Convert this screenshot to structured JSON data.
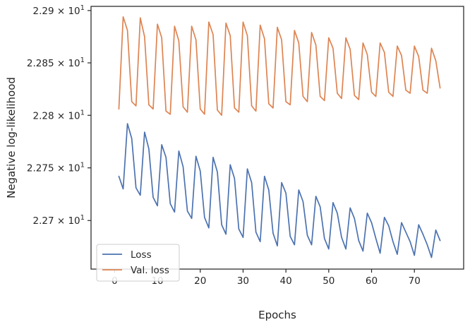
{
  "chart_data": {
    "type": "line",
    "xlabel": "Epochs",
    "ylabel": "Negative log-likelihood",
    "xlim": [
      -5.5,
      81.5
    ],
    "ylim": [
      22.654,
      22.904
    ],
    "yscale": "log",
    "grid": false,
    "legend_position": "lower-left",
    "xticks": [
      {
        "value": 0,
        "label": "0"
      },
      {
        "value": 10,
        "label": "10"
      },
      {
        "value": 20,
        "label": "20"
      },
      {
        "value": 30,
        "label": "30"
      },
      {
        "value": 40,
        "label": "40"
      },
      {
        "value": 50,
        "label": "50"
      },
      {
        "value": 60,
        "label": "60"
      },
      {
        "value": 70,
        "label": "70"
      }
    ],
    "yticks": [
      {
        "value": 22.7,
        "mantissa": "2.27",
        "base": "10",
        "exp": "1"
      },
      {
        "value": 22.75,
        "mantissa": "2.275",
        "base": "10",
        "exp": "1"
      },
      {
        "value": 22.8,
        "mantissa": "2.28",
        "base": "10",
        "exp": "1"
      },
      {
        "value": 22.85,
        "mantissa": "2.285",
        "base": "10",
        "exp": "1"
      },
      {
        "value": 22.9,
        "mantissa": "2.29",
        "base": "10",
        "exp": "1"
      }
    ],
    "x": [
      1,
      2,
      3,
      4,
      5,
      6,
      7,
      8,
      9,
      10,
      11,
      12,
      13,
      14,
      15,
      16,
      17,
      18,
      19,
      20,
      21,
      22,
      23,
      24,
      25,
      26,
      27,
      28,
      29,
      30,
      31,
      32,
      33,
      34,
      35,
      36,
      37,
      38,
      39,
      40,
      41,
      42,
      43,
      44,
      45,
      46,
      47,
      48,
      49,
      50,
      51,
      52,
      53,
      54,
      55,
      56,
      57,
      58,
      59,
      60,
      61,
      62,
      63,
      64,
      65,
      66,
      67,
      68,
      69,
      70,
      71,
      72,
      73,
      74,
      75,
      76
    ],
    "series": [
      {
        "name": "Loss",
        "color": "#4c72b0",
        "values": [
          22.742,
          22.73,
          22.792,
          22.778,
          22.731,
          22.724,
          22.784,
          22.768,
          22.722,
          22.714,
          22.772,
          22.76,
          22.716,
          22.708,
          22.766,
          22.751,
          22.709,
          22.702,
          22.761,
          22.747,
          22.703,
          22.693,
          22.76,
          22.746,
          22.696,
          22.687,
          22.753,
          22.74,
          22.692,
          22.684,
          22.749,
          22.736,
          22.689,
          22.68,
          22.742,
          22.729,
          22.688,
          22.676,
          22.736,
          22.726,
          22.685,
          22.677,
          22.729,
          22.718,
          22.686,
          22.677,
          22.723,
          22.713,
          22.683,
          22.673,
          22.717,
          22.707,
          22.684,
          22.673,
          22.712,
          22.702,
          22.681,
          22.671,
          22.707,
          22.698,
          22.683,
          22.669,
          22.703,
          22.695,
          22.68,
          22.668,
          22.698,
          22.689,
          22.68,
          22.667,
          22.696,
          22.687,
          22.677,
          22.665,
          22.691,
          22.681
        ]
      },
      {
        "name": "Val. loss",
        "color": "#dd8452",
        "values": [
          22.806,
          22.894,
          22.881,
          22.813,
          22.809,
          22.893,
          22.875,
          22.81,
          22.806,
          22.887,
          22.874,
          22.804,
          22.801,
          22.885,
          22.871,
          22.808,
          22.803,
          22.885,
          22.872,
          22.806,
          22.801,
          22.889,
          22.877,
          22.805,
          22.8,
          22.888,
          22.876,
          22.807,
          22.803,
          22.889,
          22.876,
          22.809,
          22.804,
          22.886,
          22.873,
          22.811,
          22.807,
          22.884,
          22.872,
          22.813,
          22.81,
          22.881,
          22.869,
          22.818,
          22.813,
          22.879,
          22.867,
          22.818,
          22.814,
          22.874,
          22.864,
          22.821,
          22.816,
          22.874,
          22.863,
          22.819,
          22.815,
          22.869,
          22.858,
          22.822,
          22.818,
          22.869,
          22.86,
          22.822,
          22.818,
          22.866,
          22.857,
          22.824,
          22.821,
          22.866,
          22.856,
          22.824,
          22.821,
          22.864,
          22.852,
          22.826
        ]
      }
    ]
  }
}
